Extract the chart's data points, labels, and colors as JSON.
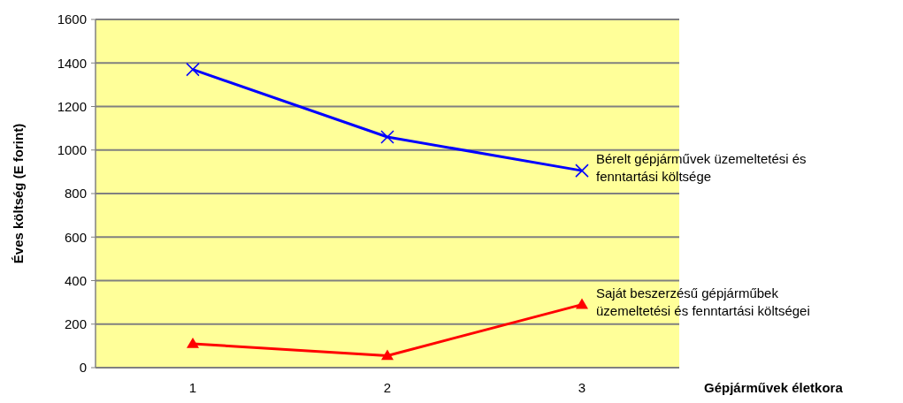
{
  "chart_data": {
    "type": "line",
    "xlabel": "Gépjárművek életkora",
    "ylabel": "Éves költség (E forint)",
    "categories": [
      "1",
      "2",
      "3"
    ],
    "series": [
      {
        "name": "Bérelt gépjárművek üzemeltetési és fenntartási költsége",
        "color": "#0000ff",
        "marker": "cross",
        "values": [
          1370,
          1060,
          905
        ]
      },
      {
        "name": "Saját beszerzésű gépjárműbek üzemeltetési és fenntartási költségei",
        "color": "#ff0000",
        "marker": "triangle",
        "values": [
          110,
          55,
          290
        ]
      }
    ],
    "ylim": [
      0,
      1600
    ],
    "yticks": [
      0,
      200,
      400,
      600,
      800,
      1000,
      1200,
      1400,
      1600
    ],
    "grid": "y"
  }
}
